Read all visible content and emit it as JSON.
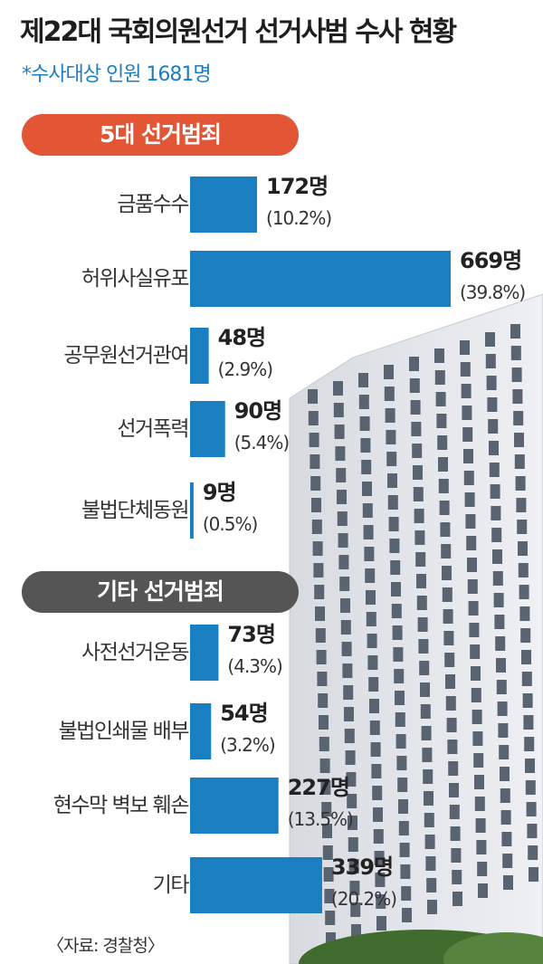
{
  "title": "제22대 국회의원선거 선거사범 수사 현황",
  "subtitle": "*수사대상 인원 1681명",
  "source": "〈자료: 경찰청〉",
  "colors": {
    "bar": "#1a7fc1",
    "group1_pill": "#e25535",
    "group2_pill": "#555555",
    "subtitle": "#1a7fc1"
  },
  "groups": [
    {
      "label": "5대 선거범죄",
      "color": "#e25535"
    },
    {
      "label": "기타 선거범죄",
      "color": "#555555"
    }
  ],
  "chart_data": {
    "type": "bar",
    "orientation": "horizontal",
    "title": "제22대 국회의원선거 선거사범 수사 현황",
    "subtitle": "*수사대상 인원 1681명",
    "unit": "명",
    "categories": [
      "금품수수",
      "허위사실유포",
      "공무원선거관여",
      "선거폭력",
      "불법단체동원",
      "사전선거운동",
      "불법인쇄물 배부",
      "현수막 벽보 훼손",
      "기타"
    ],
    "group": [
      "5대 선거범죄",
      "5대 선거범죄",
      "5대 선거범죄",
      "5대 선거범죄",
      "5대 선거범죄",
      "기타 선거범죄",
      "기타 선거범죄",
      "기타 선거범죄",
      "기타 선거범죄"
    ],
    "values": [
      172,
      669,
      48,
      90,
      9,
      73,
      54,
      227,
      339
    ],
    "value_labels": [
      "172명",
      "669명",
      "48명",
      "90명",
      "9명",
      "73명",
      "54명",
      "227명",
      "339명"
    ],
    "percents": [
      10.2,
      39.8,
      2.9,
      5.4,
      0.5,
      4.3,
      3.2,
      13.5,
      20.2
    ],
    "percent_labels": [
      "(10.2%)",
      "(39.8%)",
      "(2.9%)",
      "(5.4%)",
      "(0.5%)",
      "(4.3%)",
      "(3.2%)",
      "(13.5%)",
      "(20.2%)"
    ],
    "grid": false,
    "legend": "none"
  }
}
